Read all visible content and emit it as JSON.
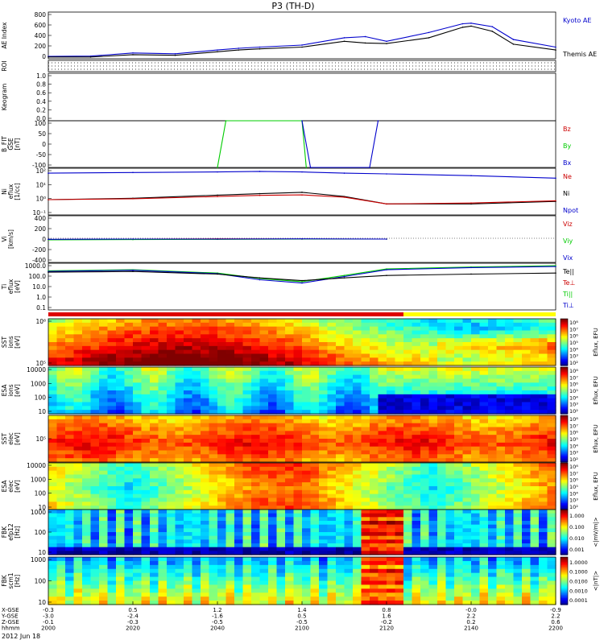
{
  "page": {
    "title": "P3 (TH-D)",
    "date_label": "2012 Jun 18"
  },
  "colors": {
    "kyoto": "#0000cc",
    "themis": "#000000",
    "red": "#cc0000",
    "green": "#00cc00",
    "blue": "#0000cc",
    "black": "#000000"
  },
  "panels": [
    {
      "id": "ae",
      "ylabel": [
        "AE Index"
      ],
      "ticks": [
        "0",
        "200",
        "400",
        "600",
        "800"
      ],
      "legend": [
        {
          "text": "Kyoto AE",
          "color": "#0000cc"
        },
        {
          "text": "Themis AE",
          "color": "#000000"
        }
      ]
    },
    {
      "id": "roi",
      "ylabel": [
        "ROI"
      ],
      "ticks": [],
      "legend": []
    },
    {
      "id": "keogram",
      "ylabel": [
        "Keogram"
      ],
      "ticks": [
        "0.0",
        "0.2",
        "0.4",
        "0.6",
        "0.8",
        "1.0"
      ],
      "legend": []
    },
    {
      "id": "bfit",
      "ylabel": [
        "B_FIT",
        "GSE",
        "[nT]"
      ],
      "ticks": [
        "-100",
        "-50",
        "0",
        "50",
        "100"
      ],
      "legend": [
        {
          "text": "Bz",
          "color": "#cc0000"
        },
        {
          "text": "By",
          "color": "#00cc00"
        },
        {
          "text": "Bx",
          "color": "#0000cc"
        }
      ]
    },
    {
      "id": "ni",
      "ylabel": [
        "Ni",
        "eflux",
        "[1/cc]"
      ],
      "ticks": [
        "10⁻¹",
        "10⁰",
        "10¹",
        "10²"
      ],
      "legend": [
        {
          "text": "Ne",
          "color": "#cc0000"
        },
        {
          "text": "Ni",
          "color": "#000000"
        },
        {
          "text": "Npot",
          "color": "#0000cc"
        }
      ]
    },
    {
      "id": "vi",
      "ylabel": [
        "Vi",
        "[km/s]"
      ],
      "ticks": [
        "-400",
        "-200",
        "0",
        "200",
        "400"
      ],
      "legend": [
        {
          "text": "Viz",
          "color": "#cc0000"
        },
        {
          "text": "Viy",
          "color": "#00cc00"
        },
        {
          "text": "Vix",
          "color": "#0000cc"
        }
      ]
    },
    {
      "id": "ti",
      "ylabel": [
        "Ti",
        "eflux",
        "[eV]"
      ],
      "ticks": [
        "0.1",
        "1.0",
        "10.0",
        "100.0",
        "1000.0"
      ],
      "legend": [
        {
          "text": "Te||",
          "color": "#000000"
        },
        {
          "text": "Te⊥",
          "color": "#cc0000"
        },
        {
          "text": "Ti||",
          "color": "#00cc00"
        },
        {
          "text": "Ti⊥",
          "color": "#0000cc"
        }
      ]
    },
    {
      "id": "sst_i",
      "ylabel": [
        "SST",
        "ions",
        "[eV]"
      ],
      "ticks": [
        "10⁵",
        "10⁶"
      ],
      "cbar_ticks": [
        "10²",
        "10³",
        "10⁴",
        "10⁵",
        "10⁶",
        "10⁷",
        "10⁸"
      ],
      "cbar_label": "Eflux, EFU"
    },
    {
      "id": "esa_i",
      "ylabel": [
        "ESA",
        "ions",
        "[eV]"
      ],
      "ticks": [
        "10",
        "100",
        "1000",
        "10000"
      ],
      "cbar_ticks": [
        "10²",
        "10³",
        "10⁴",
        "10⁵",
        "10⁶",
        "10⁷",
        "10⁸"
      ],
      "cbar_label": "Eflux, EFU"
    },
    {
      "id": "sst_e",
      "ylabel": [
        "SST",
        "elec",
        "[eV]"
      ],
      "ticks": [
        "10⁵"
      ],
      "cbar_ticks": [
        "10²",
        "10³",
        "10⁴",
        "10⁵",
        "10⁶",
        "10⁷",
        "10⁸"
      ],
      "cbar_label": "Eflux, EFU"
    },
    {
      "id": "esa_e",
      "ylabel": [
        "ESA",
        "elec",
        "[eV]"
      ],
      "ticks": [
        "10",
        "100",
        "1000",
        "10000"
      ],
      "cbar_ticks": [
        "10²",
        "10³",
        "10⁴",
        "10⁵",
        "10⁶",
        "10⁷",
        "10⁸"
      ],
      "cbar_label": "Eflux, EFU"
    },
    {
      "id": "fbk_e",
      "ylabel": [
        "FBK",
        "efp12",
        "[Hz]"
      ],
      "ticks": [
        "10",
        "100",
        "1000"
      ],
      "cbar_ticks": [
        "0.001",
        "0.010",
        "0.100",
        "1.000"
      ],
      "cbar_label": "<|mV/m|>"
    },
    {
      "id": "fbk_b",
      "ylabel": [
        "FBK",
        "scm1",
        "[Hz]"
      ],
      "ticks": [
        "10",
        "100",
        "1000"
      ],
      "cbar_ticks": [
        "0.0001",
        "0.0010",
        "0.0100",
        "0.1000",
        "1.0000"
      ],
      "cbar_label": "<|nT|>"
    }
  ],
  "xaxis": {
    "row_labels": [
      "X-GSE",
      "Y-GSE",
      "Z-GSE",
      "hhmm"
    ],
    "columns": [
      {
        "x": "-0.3",
        "y": "-3.0",
        "z": "-0.1",
        "t": "2000"
      },
      {
        "x": "0.5",
        "y": "-2.4",
        "z": "-0.3",
        "t": "2020"
      },
      {
        "x": "1.2",
        "y": "-1.6",
        "z": "-0.5",
        "t": "2040"
      },
      {
        "x": "1.4",
        "y": "0.5",
        "z": "-0.5",
        "t": "2100"
      },
      {
        "x": "0.8",
        "y": "1.6",
        "z": "-0.2",
        "t": "2120"
      },
      {
        "x": "-0.0",
        "y": "2.2",
        "z": "0.2",
        "t": "2140"
      },
      {
        "x": "-0.9",
        "y": "2.2",
        "z": "0.6",
        "t": "2200"
      }
    ]
  },
  "chart_data": [
    {
      "type": "line",
      "panel": "ae",
      "xlabel": "hhmm",
      "ylabel": "AE Index",
      "ylim": [
        0,
        800
      ],
      "x_hhmm": [
        "2000",
        "2010",
        "2020",
        "2030",
        "2040",
        "2045",
        "2050",
        "2100",
        "2110",
        "2115",
        "2120",
        "2130",
        "2138",
        "2140",
        "2145",
        "2150",
        "2200"
      ],
      "series": [
        {
          "name": "Kyoto AE",
          "values": [
            40,
            45,
            100,
            85,
            150,
            180,
            200,
            235,
            360,
            380,
            300,
            450,
            600,
            610,
            550,
            330,
            200
          ]
        },
        {
          "name": "Themis AE",
          "values": [
            30,
            30,
            70,
            60,
            120,
            150,
            170,
            200,
            300,
            270,
            260,
            360,
            540,
            560,
            470,
            250,
            150
          ]
        }
      ]
    },
    {
      "type": "line",
      "panel": "bfit",
      "xlabel": "hhmm",
      "ylabel": "B_FIT GSE [nT]",
      "ylim": [
        -120,
        100
      ],
      "series": [
        {
          "name": "By",
          "x_hhmm": [
            "2040",
            "2042",
            "2100",
            "2101"
          ],
          "values": [
            -120,
            100,
            100,
            -120
          ]
        },
        {
          "name": "Bx",
          "x_hhmm": [
            "2100",
            "2102",
            "2116",
            "2118"
          ],
          "values": [
            100,
            -120,
            -120,
            100
          ]
        }
      ]
    },
    {
      "type": "line",
      "panel": "ni",
      "xlabel": "hhmm",
      "ylabel": "Ni [1/cc]",
      "ylog": true,
      "ylim": [
        0.1,
        200
      ],
      "x_hhmm": [
        "2000",
        "2020",
        "2040",
        "2050",
        "2100",
        "2110",
        "2120",
        "2140",
        "2200"
      ],
      "series": [
        {
          "name": "Npot",
          "values": [
            90,
            100,
            110,
            120,
            110,
            90,
            80,
            60,
            40
          ]
        },
        {
          "name": "Ni",
          "values": [
            1.2,
            1.5,
            2.5,
            3.2,
            4.0,
            2.0,
            0.6,
            0.6,
            0.9
          ]
        },
        {
          "name": "Ne",
          "values": [
            1.2,
            1.4,
            2.0,
            2.4,
            2.6,
            1.8,
            0.6,
            0.7,
            1.0
          ]
        }
      ]
    },
    {
      "type": "line",
      "panel": "vi",
      "xlabel": "hhmm",
      "ylabel": "Vi [km/s]",
      "ylim": [
        -500,
        500
      ],
      "x_hhmm": [
        "2000",
        "2020",
        "2040",
        "2100",
        "2120"
      ],
      "series": [
        {
          "name": "Viz",
          "values": [
            -10,
            0,
            5,
            0,
            0
          ]
        },
        {
          "name": "Viy",
          "values": [
            -15,
            -10,
            -5,
            0,
            0
          ]
        },
        {
          "name": "Vix",
          "values": [
            -5,
            0,
            0,
            5,
            0
          ]
        }
      ]
    },
    {
      "type": "line",
      "panel": "ti",
      "xlabel": "hhmm",
      "ylabel": "Ti [eV]",
      "ylog": true,
      "ylim": [
        0.1,
        2000
      ],
      "x_hhmm": [
        "2000",
        "2020",
        "2040",
        "2050",
        "2100",
        "2110",
        "2120",
        "2140",
        "2200"
      ],
      "series": [
        {
          "name": "Ti||",
          "values": [
            400,
            500,
            250,
            80,
            40,
            150,
            600,
            900,
            1200
          ]
        },
        {
          "name": "Ti⊥",
          "values": [
            350,
            450,
            220,
            60,
            30,
            120,
            500,
            800,
            1000
          ]
        },
        {
          "name": "Te||",
          "values": [
            300,
            350,
            200,
            90,
            50,
            90,
            150,
            200,
            250
          ]
        }
      ]
    },
    {
      "type": "heatmap",
      "panel": "sst_i",
      "xlabel": "hhmm",
      "ylabel": "SST ions [eV]",
      "colorbar": "Eflux, EFU"
    },
    {
      "type": "heatmap",
      "panel": "esa_i",
      "xlabel": "hhmm",
      "ylabel": "ESA ions [eV]",
      "colorbar": "Eflux, EFU"
    },
    {
      "type": "heatmap",
      "panel": "sst_e",
      "xlabel": "hhmm",
      "ylabel": "SST elec [eV]",
      "colorbar": "Eflux, EFU"
    },
    {
      "type": "heatmap",
      "panel": "esa_e",
      "xlabel": "hhmm",
      "ylabel": "ESA elec [eV]",
      "colorbar": "Eflux, EFU"
    },
    {
      "type": "heatmap",
      "panel": "fbk_e",
      "xlabel": "hhmm",
      "ylabel": "FBK efp12 [Hz]",
      "colorbar": "<|mV/m|>"
    },
    {
      "type": "heatmap",
      "panel": "fbk_b",
      "xlabel": "hhmm",
      "ylabel": "FBK scm1 [Hz]",
      "colorbar": "<|nT|>"
    }
  ]
}
